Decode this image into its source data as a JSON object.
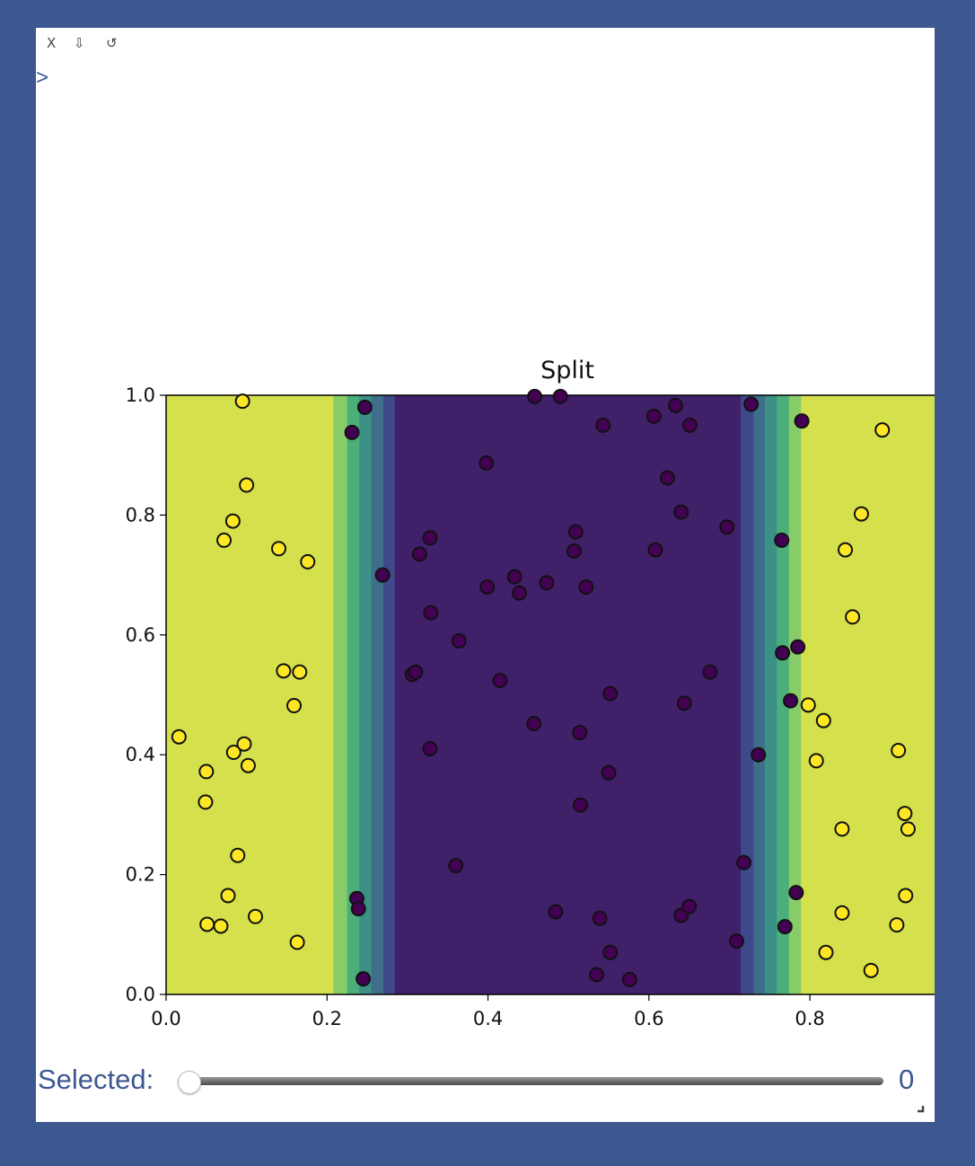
{
  "toolbar": {
    "close_label": "X",
    "download_label": "⇩",
    "reset_label": "↺"
  },
  "prompt_symbol": ">",
  "slider": {
    "label": "Selected:",
    "value": 0,
    "value_text": "0"
  },
  "colors": {
    "background": "#3d5890",
    "panel": "#ffffff",
    "accent_text": "#3d5890",
    "viridis_yellow": "#d4e04c",
    "viridis_purple": "#41206a",
    "point_yellow": "#fde725",
    "point_purple": "#440154"
  },
  "chart_data": {
    "type": "scatter",
    "title": "Split",
    "xlabel": "",
    "ylabel": "",
    "xlim": [
      0.0,
      0.955
    ],
    "ylim": [
      0.0,
      1.0
    ],
    "x_ticks": [
      "0.0",
      "0.2",
      "0.4",
      "0.6",
      "0.8"
    ],
    "y_ticks": [
      "0.0",
      "0.2",
      "0.4",
      "0.6",
      "0.8",
      "1.0"
    ],
    "grid": false,
    "background_bands": [
      {
        "x0": 0.0,
        "x1": 0.208,
        "color": "#d4e04c"
      },
      {
        "x0": 0.208,
        "x1": 0.225,
        "color": "#88cb69"
      },
      {
        "x0": 0.225,
        "x1": 0.24,
        "color": "#4caf7a"
      },
      {
        "x0": 0.24,
        "x1": 0.255,
        "color": "#3b9186"
      },
      {
        "x0": 0.255,
        "x1": 0.27,
        "color": "#3f6e8b"
      },
      {
        "x0": 0.27,
        "x1": 0.284,
        "color": "#3e4989"
      },
      {
        "x0": 0.284,
        "x1": 0.714,
        "color": "#41206a"
      },
      {
        "x0": 0.714,
        "x1": 0.73,
        "color": "#3e4989"
      },
      {
        "x0": 0.73,
        "x1": 0.744,
        "color": "#3f6e8b"
      },
      {
        "x0": 0.744,
        "x1": 0.759,
        "color": "#3b9186"
      },
      {
        "x0": 0.759,
        "x1": 0.774,
        "color": "#4caf7a"
      },
      {
        "x0": 0.774,
        "x1": 0.789,
        "color": "#88cb69"
      },
      {
        "x0": 0.789,
        "x1": 0.955,
        "color": "#d4e04c"
      }
    ],
    "series": [
      {
        "class": 1,
        "color": "#fde725",
        "x": [
          0.095,
          0.1,
          0.083,
          0.072,
          0.14,
          0.176,
          0.146,
          0.166,
          0.159,
          0.016,
          0.084,
          0.097,
          0.102,
          0.05,
          0.049,
          0.089,
          0.077,
          0.051,
          0.068,
          0.111,
          0.163,
          0.89,
          0.864,
          0.844,
          0.853,
          0.798,
          0.817,
          0.808,
          0.91,
          0.84,
          0.918,
          0.922,
          0.919,
          0.908,
          0.84,
          0.82,
          0.876
        ],
        "y": [
          0.99,
          0.85,
          0.79,
          0.758,
          0.744,
          0.722,
          0.54,
          0.538,
          0.482,
          0.43,
          0.404,
          0.418,
          0.382,
          0.372,
          0.321,
          0.232,
          0.165,
          0.117,
          0.114,
          0.13,
          0.087,
          0.942,
          0.802,
          0.742,
          0.63,
          0.483,
          0.457,
          0.39,
          0.407,
          0.276,
          0.302,
          0.276,
          0.165,
          0.116,
          0.136,
          0.07,
          0.04
        ]
      },
      {
        "class": 0,
        "color": "#440154",
        "x": [
          0.231,
          0.247,
          0.269,
          0.398,
          0.315,
          0.328,
          0.329,
          0.364,
          0.306,
          0.31,
          0.328,
          0.399,
          0.433,
          0.439,
          0.473,
          0.509,
          0.507,
          0.522,
          0.415,
          0.457,
          0.552,
          0.514,
          0.55,
          0.515,
          0.36,
          0.458,
          0.49,
          0.543,
          0.606,
          0.633,
          0.651,
          0.623,
          0.64,
          0.608,
          0.697,
          0.676,
          0.644,
          0.727,
          0.79,
          0.765,
          0.785,
          0.766,
          0.776,
          0.736,
          0.718,
          0.237,
          0.239,
          0.245,
          0.484,
          0.539,
          0.552,
          0.535,
          0.576,
          0.64,
          0.65,
          0.709,
          0.783,
          0.769
        ],
        "y": [
          0.938,
          0.98,
          0.7,
          0.887,
          0.735,
          0.762,
          0.637,
          0.59,
          0.534,
          0.538,
          0.41,
          0.68,
          0.697,
          0.67,
          0.687,
          0.772,
          0.74,
          0.68,
          0.524,
          0.452,
          0.502,
          0.437,
          0.37,
          0.316,
          0.215,
          0.998,
          0.998,
          0.95,
          0.965,
          0.983,
          0.95,
          0.862,
          0.805,
          0.742,
          0.78,
          0.538,
          0.486,
          0.985,
          0.957,
          0.758,
          0.58,
          0.57,
          0.49,
          0.4,
          0.22,
          0.16,
          0.143,
          0.026,
          0.138,
          0.127,
          0.07,
          0.033,
          0.025,
          0.132,
          0.147,
          0.089,
          0.17,
          0.113
        ]
      }
    ]
  }
}
